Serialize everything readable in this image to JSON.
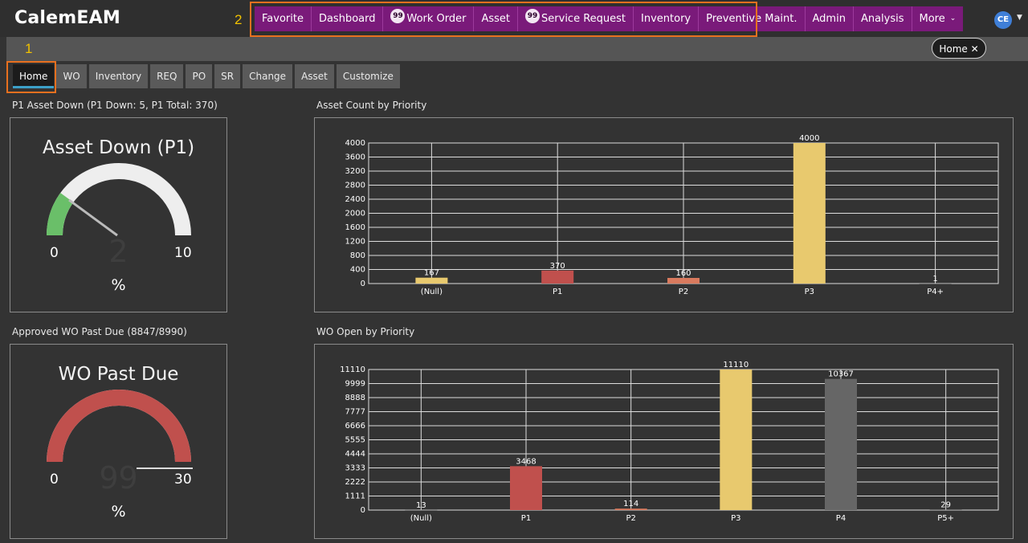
{
  "app": {
    "title": "CalemEAM"
  },
  "annotations": {
    "one": "1",
    "two": "2"
  },
  "nav": {
    "items": [
      {
        "label": "Favorite",
        "badge": ""
      },
      {
        "label": "Dashboard",
        "badge": ""
      },
      {
        "label": "Work Order",
        "badge": "99"
      },
      {
        "label": "Asset",
        "badge": ""
      },
      {
        "label": "Service Request",
        "badge": "99"
      },
      {
        "label": "Inventory",
        "badge": ""
      },
      {
        "label": "Preventive Maint.",
        "badge": ""
      },
      {
        "label": "Admin",
        "badge": ""
      },
      {
        "label": "Analysis",
        "badge": ""
      },
      {
        "label": "More",
        "badge": ""
      }
    ],
    "color": "#7a1a7a"
  },
  "user": {
    "initials": "CE"
  },
  "open_tab": {
    "label": "Home"
  },
  "tabs": [
    "Home",
    "WO",
    "Inventory",
    "REQ",
    "PO",
    "SR",
    "Change",
    "Asset",
    "Customize"
  ],
  "widgets": {
    "gauge1": {
      "section_title": "P1 Asset Down (P1 Down: 5, P1 Total: 370)",
      "title": "Asset Down (P1)",
      "min": "0",
      "max": "10",
      "value": "2",
      "unit": "%",
      "fill_color": "#6abf69",
      "fraction": 0.2
    },
    "gauge2": {
      "section_title": "Approved WO Past Due (8847/8990)",
      "title": "WO Past Due",
      "min": "0",
      "max": "30",
      "value": "99",
      "unit": "%",
      "fill_color": "#c0504d",
      "fraction": 1.0
    },
    "chart1_title": "Asset Count by Priority",
    "chart2_title": "WO Open by Priority"
  },
  "chart_data": [
    {
      "type": "bar",
      "title": "Asset Count by Priority",
      "categories": [
        "(Null)",
        "P1",
        "P2",
        "P3",
        "P4+"
      ],
      "values": [
        167,
        370,
        160,
        4000,
        1
      ],
      "colors": [
        "#e8c96e",
        "#c0504d",
        "#d97a5e",
        "#e8c96e",
        "#9a9a9a"
      ],
      "ylim": [
        0,
        4000
      ],
      "yticks": [
        "0",
        "400",
        "800",
        "1200",
        "1600",
        "2000",
        "2400",
        "2800",
        "3200",
        "3600",
        "4000"
      ],
      "grid": true
    },
    {
      "type": "bar",
      "title": "WO Open by Priority",
      "categories": [
        "(Null)",
        "P1",
        "P2",
        "P3",
        "P4",
        "P5+"
      ],
      "values": [
        13,
        3468,
        114,
        11110,
        10367,
        29
      ],
      "colors": [
        "#9a9a9a",
        "#c0504d",
        "#d97a5e",
        "#e8c96e",
        "#666666",
        "#9a9a9a"
      ],
      "ylim": [
        0,
        11110
      ],
      "yticks": [
        "0",
        "1111",
        "2222",
        "3333",
        "4444",
        "5555",
        "6666",
        "7777",
        "8888",
        "9999",
        "11110"
      ],
      "grid": true
    }
  ]
}
